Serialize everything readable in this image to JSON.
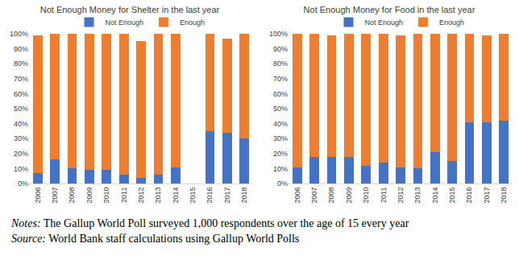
{
  "chart_data": [
    {
      "type": "bar",
      "title": "Not Enough Money for Shelter in the last year",
      "categories": [
        "2006",
        "2007",
        "2008",
        "2009",
        "2010",
        "2011",
        "2012",
        "2013",
        "2014",
        "2015",
        "2016",
        "2017",
        "2018"
      ],
      "series": [
        {
          "name": "Not Enough",
          "color": "#4472c4",
          "values": [
            7,
            16,
            10,
            9,
            9,
            6,
            4,
            6,
            11,
            null,
            35,
            34,
            30
          ]
        },
        {
          "name": "Enough",
          "color": "#ed7d31",
          "values": [
            92,
            84,
            90,
            91,
            91,
            94,
            91,
            94,
            89,
            null,
            65,
            63,
            70
          ]
        }
      ],
      "stacked": true,
      "legend": "top",
      "grid": false,
      "ylim": [
        0,
        100
      ],
      "yticks": [
        {
          "value": 0,
          "label": "0%"
        },
        {
          "value": 10,
          "label": "10%"
        },
        {
          "value": 20,
          "label": "20%"
        },
        {
          "value": 30,
          "label": "30%"
        },
        {
          "value": 40,
          "label": "40%"
        },
        {
          "value": 50,
          "label": "50%"
        },
        {
          "value": 60,
          "label": "60%"
        },
        {
          "value": 70,
          "label": "70%"
        },
        {
          "value": 80,
          "label": "80%"
        },
        {
          "value": 90,
          "label": "90%"
        },
        {
          "value": 100,
          "label": "100%"
        }
      ]
    },
    {
      "type": "bar",
      "title": "Not Enough Money for Food in the last year",
      "categories": [
        "2006",
        "2007",
        "2008",
        "2009",
        "2010",
        "2011",
        "2012",
        "2013",
        "2014",
        "2015",
        "2016",
        "2017",
        "2018"
      ],
      "series": [
        {
          "name": "Not Enough",
          "color": "#4472c4",
          "values": [
            11,
            18,
            18,
            18,
            12,
            14,
            11,
            10,
            21,
            15,
            41,
            41,
            42
          ]
        },
        {
          "name": "Enough",
          "color": "#ed7d31",
          "values": [
            89,
            82,
            81,
            82,
            88,
            86,
            88,
            90,
            79,
            85,
            59,
            58,
            58
          ]
        }
      ],
      "stacked": true,
      "legend": "top",
      "grid": false,
      "ylim": [
        0,
        100
      ],
      "yticks": [
        {
          "value": 0,
          "label": "0%"
        },
        {
          "value": 10,
          "label": "10%"
        },
        {
          "value": 20,
          "label": "20%"
        },
        {
          "value": 30,
          "label": "30%"
        },
        {
          "value": 40,
          "label": "40%"
        },
        {
          "value": 50,
          "label": "50%"
        },
        {
          "value": 60,
          "label": "60%"
        },
        {
          "value": 70,
          "label": "70%"
        },
        {
          "value": 80,
          "label": "80%"
        },
        {
          "value": 90,
          "label": "90%"
        },
        {
          "value": 100,
          "label": "100%"
        }
      ]
    }
  ],
  "footer": {
    "notes_label": "Notes:",
    "notes_text": "The Gallup World Poll surveyed 1,000 respondents over the age of 15 every year",
    "source_label": "Source:",
    "source_text": "World Bank staff calculations using Gallup World Polls"
  }
}
